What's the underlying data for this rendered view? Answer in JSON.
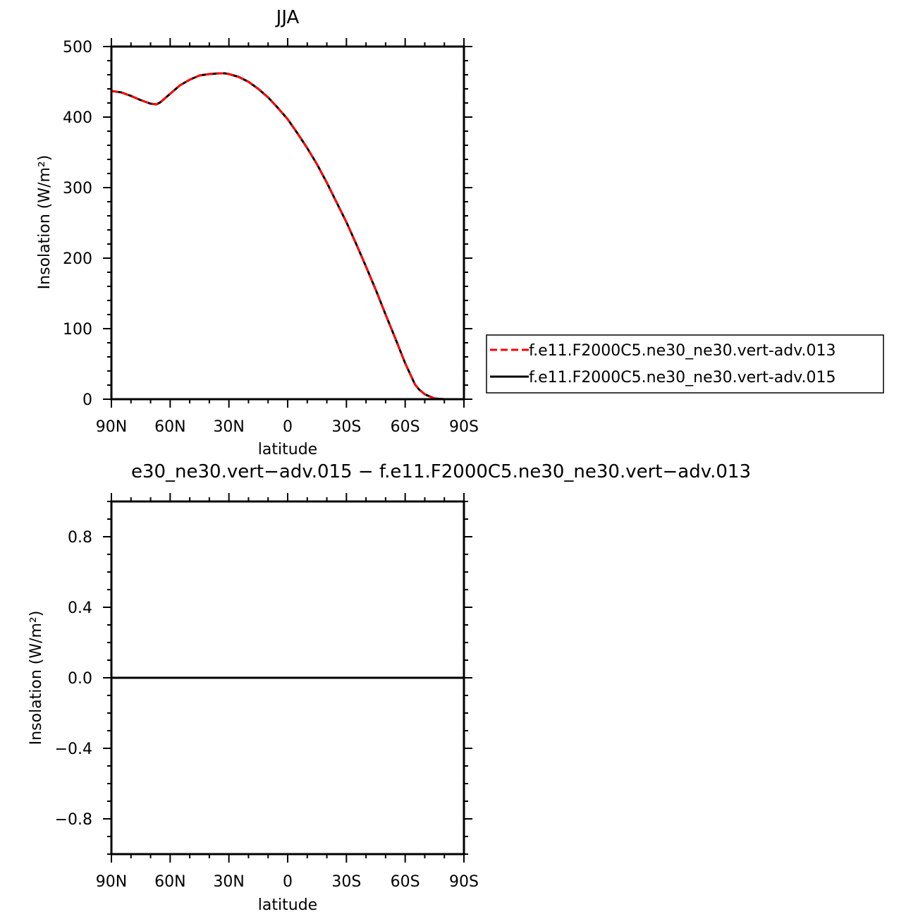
{
  "chart_data": [
    {
      "type": "line",
      "title": "JJA",
      "xlabel": "latitude",
      "ylabel": "Insolation (W/m²)",
      "xlim": [
        -90,
        90
      ],
      "ylim": [
        0,
        500
      ],
      "x_ticks": [
        -90,
        -60,
        -30,
        0,
        30,
        60,
        90
      ],
      "x_tick_labels": [
        "90N",
        "60N",
        "30N",
        "0",
        "30S",
        "60S",
        "90S"
      ],
      "y_ticks": [
        0,
        100,
        200,
        300,
        400,
        500
      ],
      "y_tick_labels": [
        "0",
        "100",
        "200",
        "300",
        "400",
        "500"
      ],
      "grid": false,
      "legend_position": "right",
      "x": [
        -90,
        -85,
        -80,
        -75,
        -70,
        -67,
        -65,
        -60,
        -55,
        -50,
        -45,
        -40,
        -35,
        -32,
        -30,
        -25,
        -20,
        -15,
        -10,
        -5,
        0,
        5,
        10,
        15,
        20,
        25,
        30,
        35,
        40,
        45,
        50,
        55,
        60,
        63,
        65,
        67,
        70,
        75,
        80,
        85,
        90
      ],
      "series": [
        {
          "name": "f.e11.F2000C5.ne30_ne30.vert-adv.013",
          "color": "#ff0000",
          "style": "dashed",
          "values": [
            437,
            435,
            430,
            424,
            419,
            418,
            421,
            433,
            445,
            453,
            459,
            461,
            462,
            462,
            461,
            457,
            450,
            440,
            428,
            413,
            397,
            377,
            356,
            333,
            307,
            279,
            251,
            220,
            188,
            155,
            120,
            86,
            51,
            33,
            21,
            14,
            7,
            1,
            0,
            0,
            0
          ]
        },
        {
          "name": "f.e11.F2000C5.ne30_ne30.vert-adv.015",
          "color": "#000000",
          "style": "solid",
          "values": [
            437,
            435,
            430,
            424,
            419,
            418,
            421,
            433,
            445,
            453,
            459,
            461,
            462,
            462,
            461,
            457,
            450,
            440,
            428,
            413,
            397,
            377,
            356,
            333,
            307,
            279,
            251,
            220,
            188,
            155,
            120,
            86,
            51,
            33,
            21,
            14,
            7,
            1,
            0,
            0,
            0
          ]
        }
      ]
    },
    {
      "type": "line",
      "title": "e30_ne30.vert−adv.015 − f.e11.F2000C5.ne30_ne30.vert−adv.013",
      "xlabel": "latitude",
      "ylabel": "Insolation (W/m²)",
      "xlim": [
        -90,
        90
      ],
      "ylim": [
        -1,
        1
      ],
      "x_ticks": [
        -90,
        -60,
        -30,
        0,
        30,
        60,
        90
      ],
      "x_tick_labels": [
        "90N",
        "60N",
        "30N",
        "0",
        "30S",
        "60S",
        "90S"
      ],
      "y_ticks": [
        -0.8,
        -0.4,
        0.0,
        0.4,
        0.8
      ],
      "y_tick_labels": [
        "−0.8",
        "−0.4",
        "0.0",
        "0.4",
        "0.8"
      ],
      "grid": false,
      "x": [
        -90,
        90
      ],
      "series": [
        {
          "color": "#000000",
          "style": "solid",
          "values": [
            0,
            0
          ]
        }
      ]
    }
  ]
}
